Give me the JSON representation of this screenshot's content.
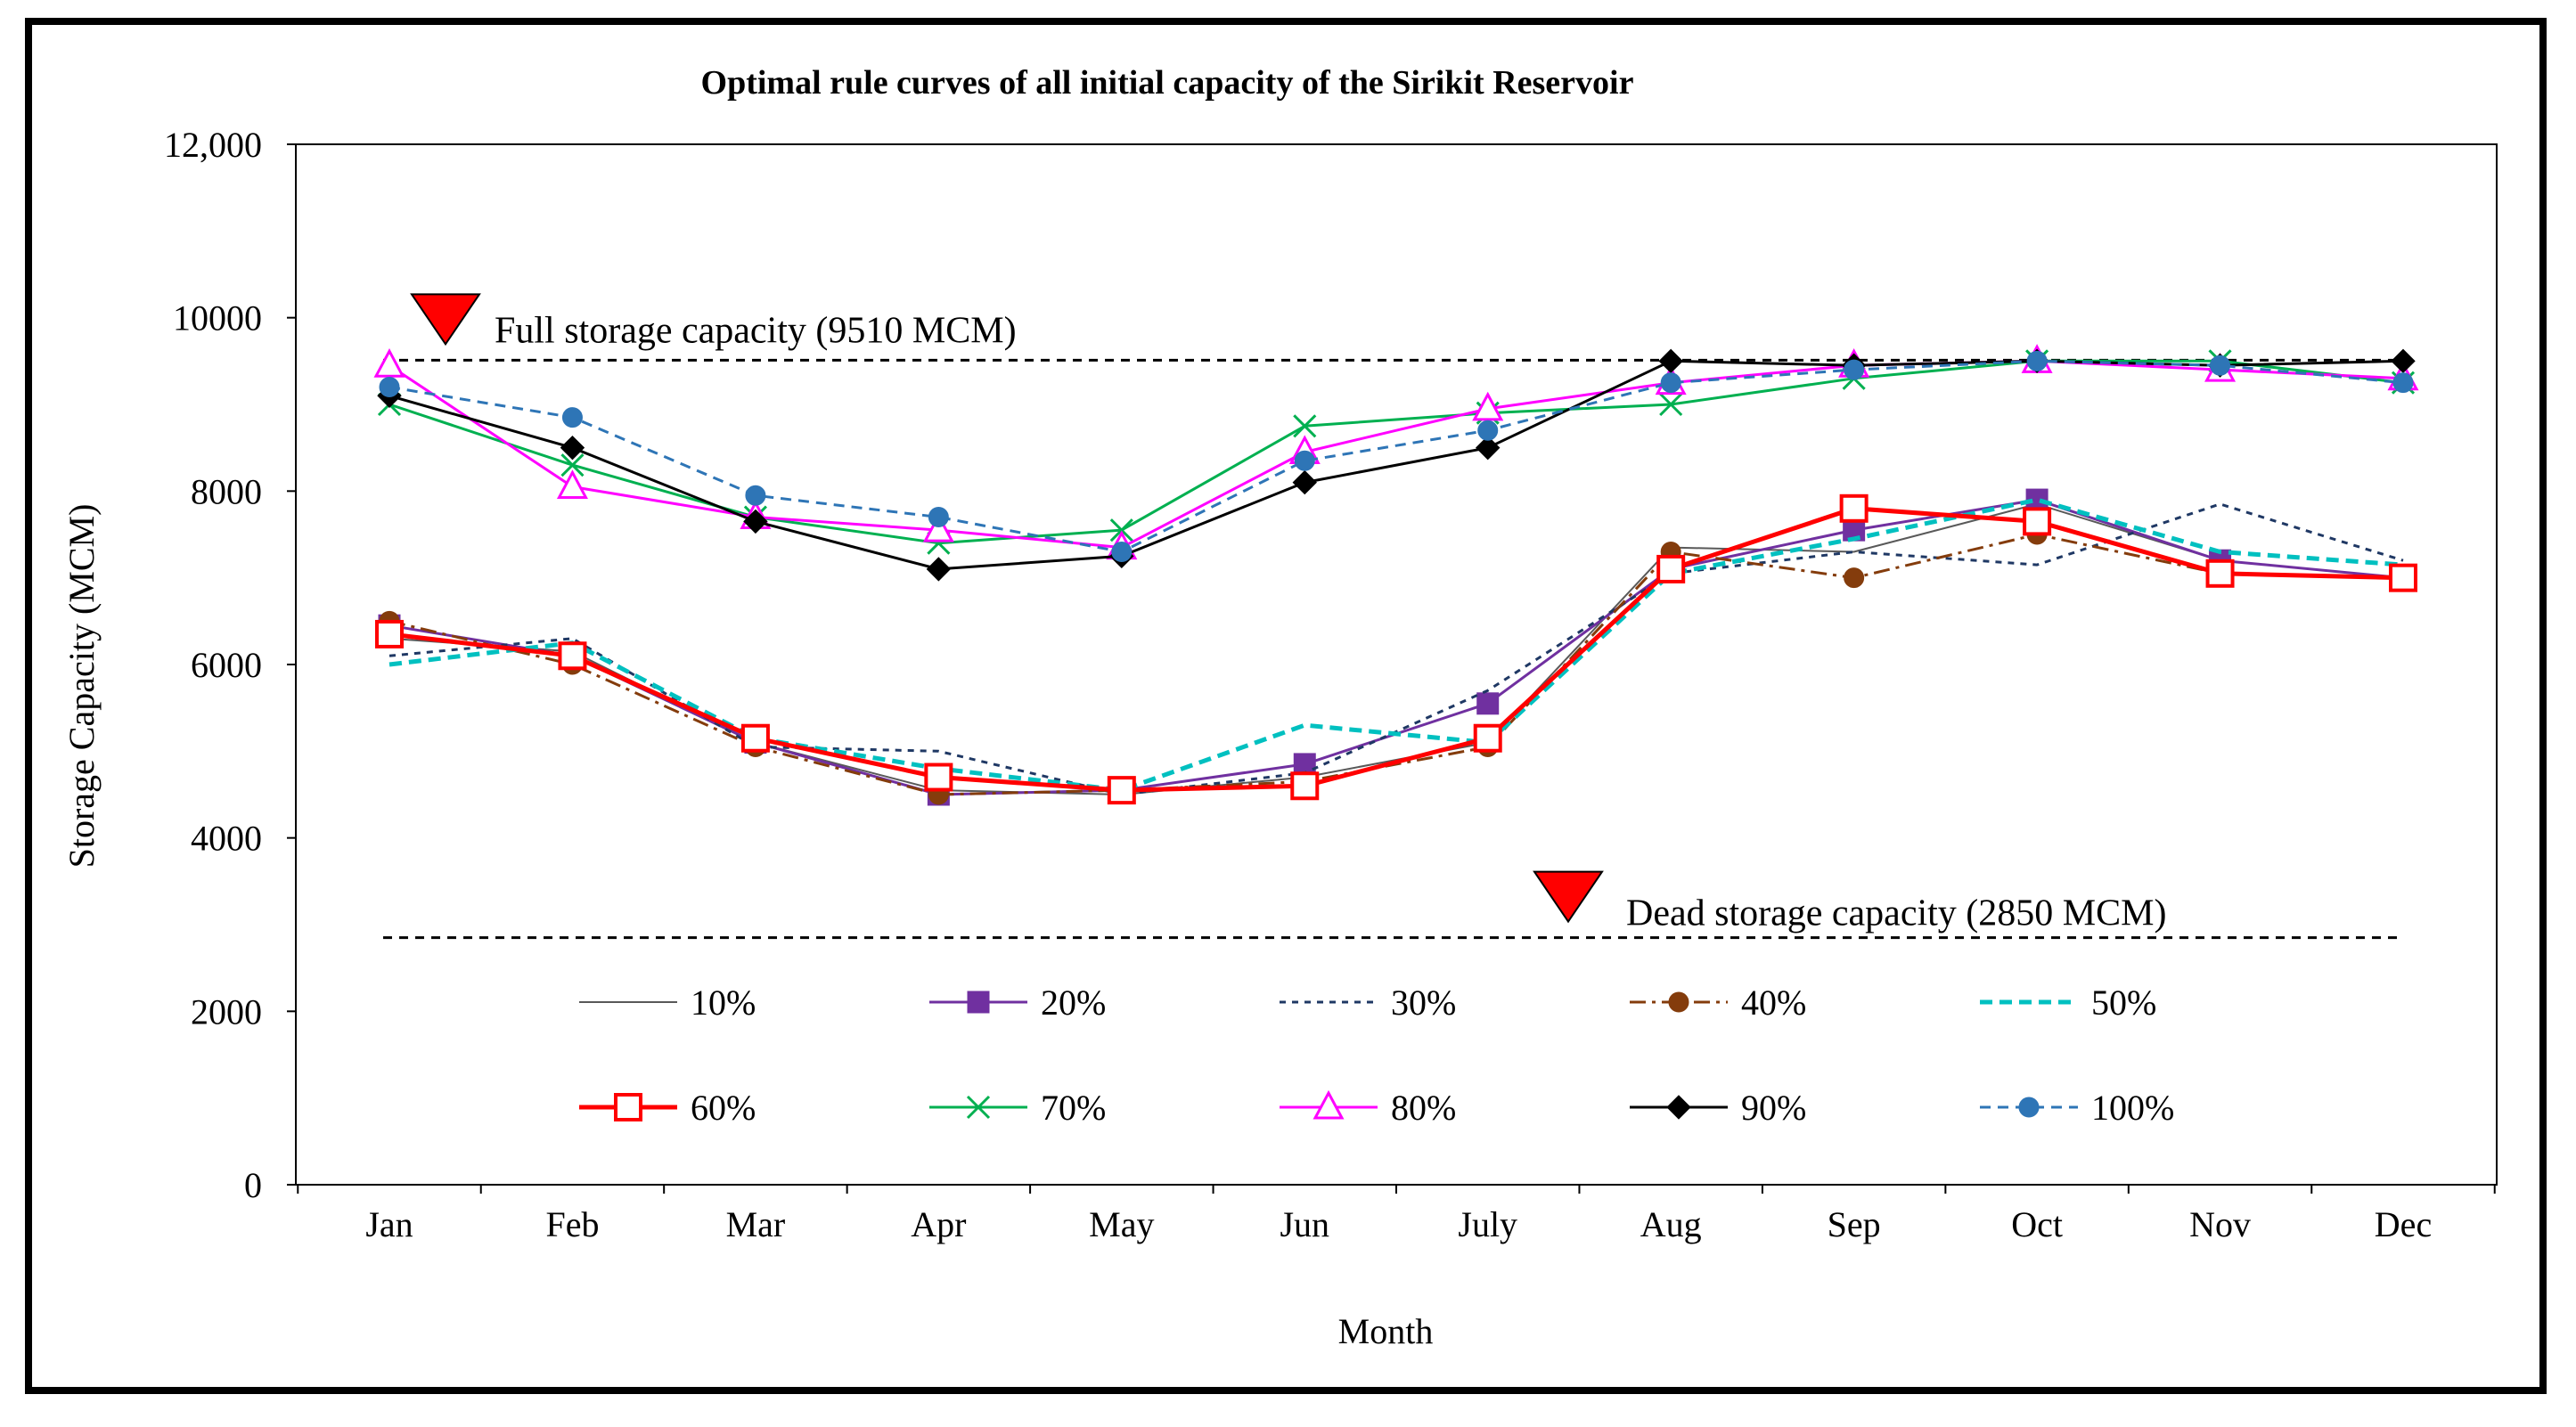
{
  "chart_data": {
    "type": "line",
    "title": "Optimal rule curves of all initial  capacity of the Sirikit  Reservoir",
    "xlabel": "Month",
    "ylabel": "Storage Capacity (MCM)",
    "ylim": [
      0,
      12000
    ],
    "yticks": [
      0,
      2000,
      4000,
      6000,
      8000,
      10000,
      12000
    ],
    "ytick_labels": [
      "0",
      "2000",
      "4000",
      "6000",
      "8000",
      "10000",
      "12,000"
    ],
    "grid": false,
    "legend_position": "bottom-inside",
    "categories": [
      "Jan",
      "Feb",
      "Mar",
      "Apr",
      "May",
      "Jun",
      "July",
      "Aug",
      "Sep",
      "Oct",
      "Nov",
      "Dec"
    ],
    "reference_lines": [
      {
        "name": "full-storage",
        "value": 9510,
        "label": "Full storage capacity (9510 MCM)"
      },
      {
        "name": "dead-storage",
        "value": 2850,
        "label": "Dead storage capacity (2850 MCM)"
      }
    ],
    "series": [
      {
        "name": "10%",
        "color": "#595959",
        "dash": "",
        "marker": "none",
        "width": 2,
        "values": [
          6300,
          6150,
          5100,
          4550,
          4500,
          4700,
          5100,
          7350,
          7300,
          7850,
          7200,
          7000
        ]
      },
      {
        "name": "20%",
        "color": "#7030A0",
        "dash": "",
        "marker": "square",
        "width": 3,
        "values": [
          6450,
          6100,
          5100,
          4500,
          4550,
          4850,
          5550,
          7100,
          7550,
          7900,
          7200,
          7000
        ]
      },
      {
        "name": "30%",
        "color": "#1F3864",
        "dash": "7,7",
        "marker": "none",
        "width": 3,
        "values": [
          6100,
          6300,
          5050,
          5000,
          4500,
          4750,
          5700,
          7050,
          7300,
          7150,
          7850,
          7200
        ]
      },
      {
        "name": "40%",
        "color": "#843C0C",
        "dash": "18,7,4,7",
        "marker": "circle",
        "width": 3,
        "values": [
          6500,
          6000,
          5050,
          4500,
          4550,
          4650,
          5050,
          7300,
          7000,
          7500,
          7050,
          7000
        ]
      },
      {
        "name": "50%",
        "color": "#00C0C0",
        "dash": "14,8",
        "marker": "none",
        "width": 5,
        "values": [
          6000,
          6250,
          5150,
          4800,
          4550,
          5300,
          5100,
          7050,
          7450,
          7900,
          7300,
          7150
        ]
      },
      {
        "name": "60%",
        "color": "#FF0000",
        "dash": "",
        "marker": "open-square",
        "width": 5,
        "values": [
          6350,
          6100,
          5150,
          4700,
          4550,
          4600,
          5150,
          7100,
          7800,
          7650,
          7050,
          7000
        ]
      },
      {
        "name": "70%",
        "color": "#00B050",
        "dash": "",
        "marker": "x",
        "width": 3,
        "values": [
          9000,
          8300,
          7700,
          7400,
          7550,
          8750,
          8900,
          9000,
          9300,
          9500,
          9500,
          9250
        ]
      },
      {
        "name": "80%",
        "color": "#FF00FF",
        "dash": "",
        "marker": "open-triangle",
        "width": 3,
        "values": [
          9450,
          8050,
          7700,
          7550,
          7350,
          8450,
          8950,
          9250,
          9450,
          9500,
          9400,
          9300
        ]
      },
      {
        "name": "90%",
        "color": "#000000",
        "dash": "",
        "marker": "diamond",
        "width": 3,
        "values": [
          9100,
          8500,
          7650,
          7100,
          7250,
          8100,
          8500,
          9500,
          9450,
          9500,
          9450,
          9500
        ]
      },
      {
        "name": "100%",
        "color": "#2E75B6",
        "dash": "12,8",
        "marker": "circle",
        "width": 3,
        "values": [
          9200,
          8850,
          7950,
          7700,
          7300,
          8350,
          8700,
          9250,
          9400,
          9500,
          9450,
          9250
        ]
      }
    ]
  }
}
